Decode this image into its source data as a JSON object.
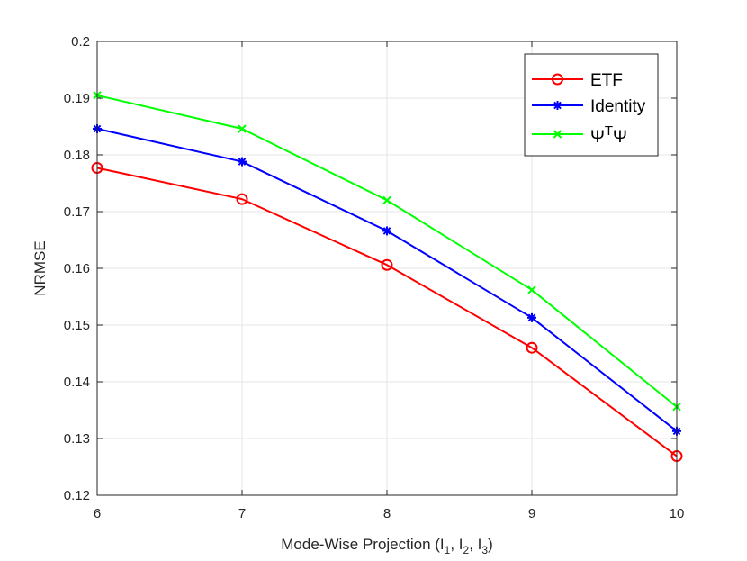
{
  "chart_data": {
    "type": "line",
    "title": "",
    "xlabel": "Mode-Wise Projection (I",
    "xlabel_parts": {
      "prefix": "Mode-Wise Projection (I",
      "sub1": "1",
      "mid1": ", I",
      "sub2": "2",
      "mid2": ", I",
      "sub3": "3",
      "suffix": ")"
    },
    "ylabel": "NRMSE",
    "x": [
      6,
      7,
      8,
      9,
      10
    ],
    "xlim": [
      6,
      10
    ],
    "ylim": [
      0.12,
      0.2
    ],
    "xticks": [
      "6",
      "7",
      "8",
      "9",
      "10"
    ],
    "yticks": [
      "0.12",
      "0.13",
      "0.14",
      "0.15",
      "0.16",
      "0.17",
      "0.18",
      "0.19",
      "0.2"
    ],
    "grid": true,
    "legend_position": "top-right",
    "series": [
      {
        "name": "ETF",
        "marker": "circle",
        "color": "#ff0000",
        "values": [
          0.1777,
          0.1722,
          0.1606,
          0.146,
          0.1269
        ]
      },
      {
        "name": "Identity",
        "marker": "asterisk",
        "color": "#0000ff",
        "values": [
          0.1846,
          0.1788,
          0.1666,
          0.1513,
          0.1313
        ]
      },
      {
        "name": "ΨTΨ",
        "name_parts": {
          "base": "Ψ",
          "sup": "T",
          "tail": "Ψ"
        },
        "marker": "x",
        "color": "#00ff00",
        "values": [
          0.1905,
          0.1846,
          0.172,
          0.1562,
          0.1356
        ]
      }
    ]
  }
}
